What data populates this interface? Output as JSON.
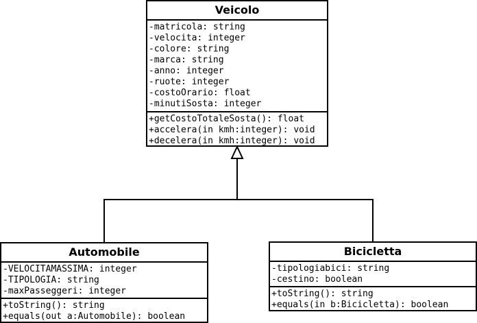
{
  "classes": {
    "veicolo": {
      "name": "Veicolo",
      "attributes": [
        "-matricola: string",
        "-velocita: integer",
        "-colore: string",
        "-marca: string",
        "-anno: integer",
        "-ruote: integer",
        "-costoOrario: float",
        "-minutiSosta: integer"
      ],
      "methods": [
        "+getCostoTotaleSosta(): float",
        "+accelera(in kmh:integer): void",
        "+decelera(in kmh:integer): void"
      ]
    },
    "automobile": {
      "name": "Automobile",
      "attributes": [
        "-VELOCITAMASSIMA: integer",
        "-TIPOLOGIA: string",
        "-maxPasseggeri: integer"
      ],
      "methods": [
        "+toString(): string",
        "+equals(out a:Automobile): boolean"
      ]
    },
    "bicicletta": {
      "name": "Bicicletta",
      "attributes": [
        "-tipologiabici: string",
        "-cestino: boolean"
      ],
      "methods": [
        "+toString(): string",
        "+equals(in b:Bicicletta): boolean"
      ]
    }
  },
  "relations": [
    {
      "type": "generalization",
      "from": "Automobile",
      "to": "Veicolo"
    },
    {
      "type": "generalization",
      "from": "Bicicletta",
      "to": "Veicolo"
    }
  ]
}
